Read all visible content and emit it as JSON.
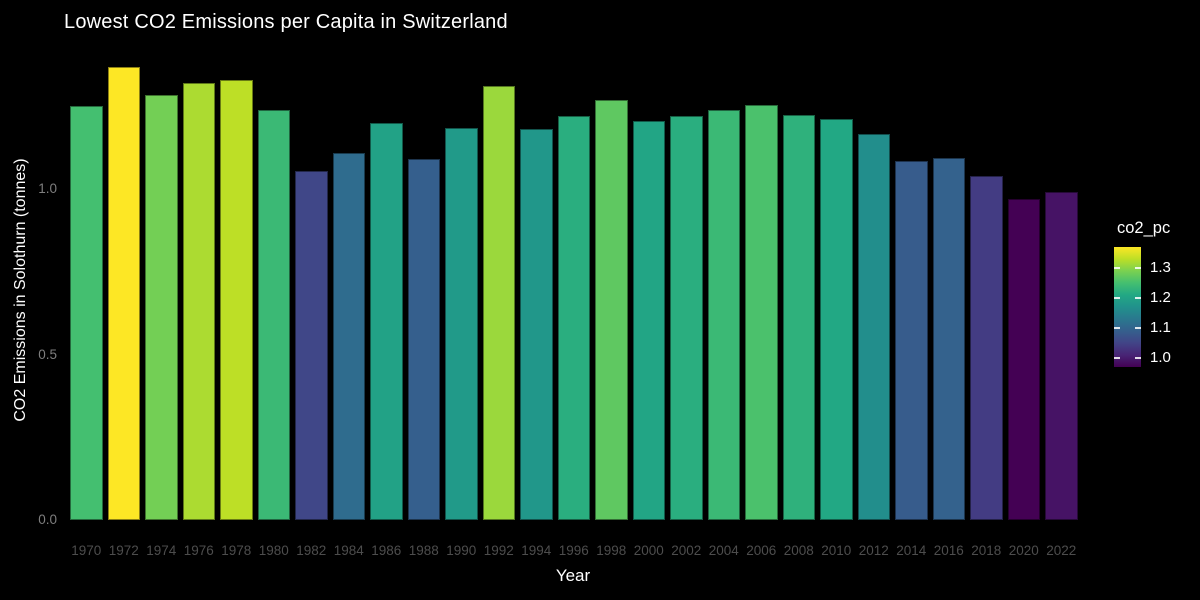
{
  "title": "Lowest CO2 Emissions per Capita in Switzerland",
  "x_axis": {
    "label": "Year",
    "tick_labels": [
      "1970",
      "1972",
      "1974",
      "1976",
      "1978",
      "1980",
      "1982",
      "1984",
      "1986",
      "1988",
      "1990",
      "1992",
      "1994",
      "1996",
      "1998",
      "2000",
      "2002",
      "2004",
      "2006",
      "2008",
      "2010",
      "2012",
      "2014",
      "2016",
      "2018",
      "2020",
      "2022"
    ]
  },
  "y_axis": {
    "label": "CO2 Emissions in Solothurn (tonnes)",
    "tick_labels": [
      "0.0",
      "0.5",
      "1.0"
    ],
    "tick_values": [
      0.0,
      0.5,
      1.0
    ]
  },
  "legend": {
    "title": "co2_pc",
    "tick_labels": [
      "1.3",
      "1.2",
      "1.1",
      "1.0"
    ],
    "tick_values": [
      1.3,
      1.2,
      1.1,
      1.0
    ]
  },
  "chart_data": {
    "type": "bar",
    "title": "Lowest CO2 Emissions per Capita in Switzerland",
    "xlabel": "Year",
    "ylabel": "CO2 Emissions in Solothurn (tonnes)",
    "categories": [
      1970,
      1972,
      1974,
      1976,
      1978,
      1980,
      1982,
      1984,
      1986,
      1988,
      1990,
      1992,
      1994,
      1996,
      1998,
      2000,
      2002,
      2004,
      2006,
      2008,
      2010,
      2012,
      2014,
      2016,
      2018,
      2020,
      2022
    ],
    "values": [
      1.25,
      1.37,
      1.285,
      1.32,
      1.33,
      1.24,
      1.055,
      1.11,
      1.2,
      1.09,
      1.185,
      1.31,
      1.18,
      1.22,
      1.27,
      1.205,
      1.22,
      1.24,
      1.255,
      1.225,
      1.21,
      1.165,
      1.085,
      1.095,
      1.04,
      0.97,
      0.99
    ],
    "ylim": [
      0,
      1.4
    ],
    "y_ticks": [
      0.0,
      0.5,
      1.0
    ],
    "grid": false,
    "legend_title": "co2_pc",
    "legend_position": "right",
    "color_scale": {
      "name": "viridis",
      "domain": [
        0.97,
        1.37
      ],
      "stops": [
        "#440154",
        "#482475",
        "#414487",
        "#355f8d",
        "#2a788e",
        "#21918c",
        "#22a884",
        "#44bf70",
        "#7ad151",
        "#bddf26",
        "#fde725"
      ]
    }
  },
  "colors": {
    "background": "#000000",
    "title_text": "#ffffff",
    "axis_title_text": "#ffffff",
    "y_tick_text": "#7e7e7e",
    "x_tick_text": "#4d4d4d",
    "legend_text": "#ffffff"
  }
}
